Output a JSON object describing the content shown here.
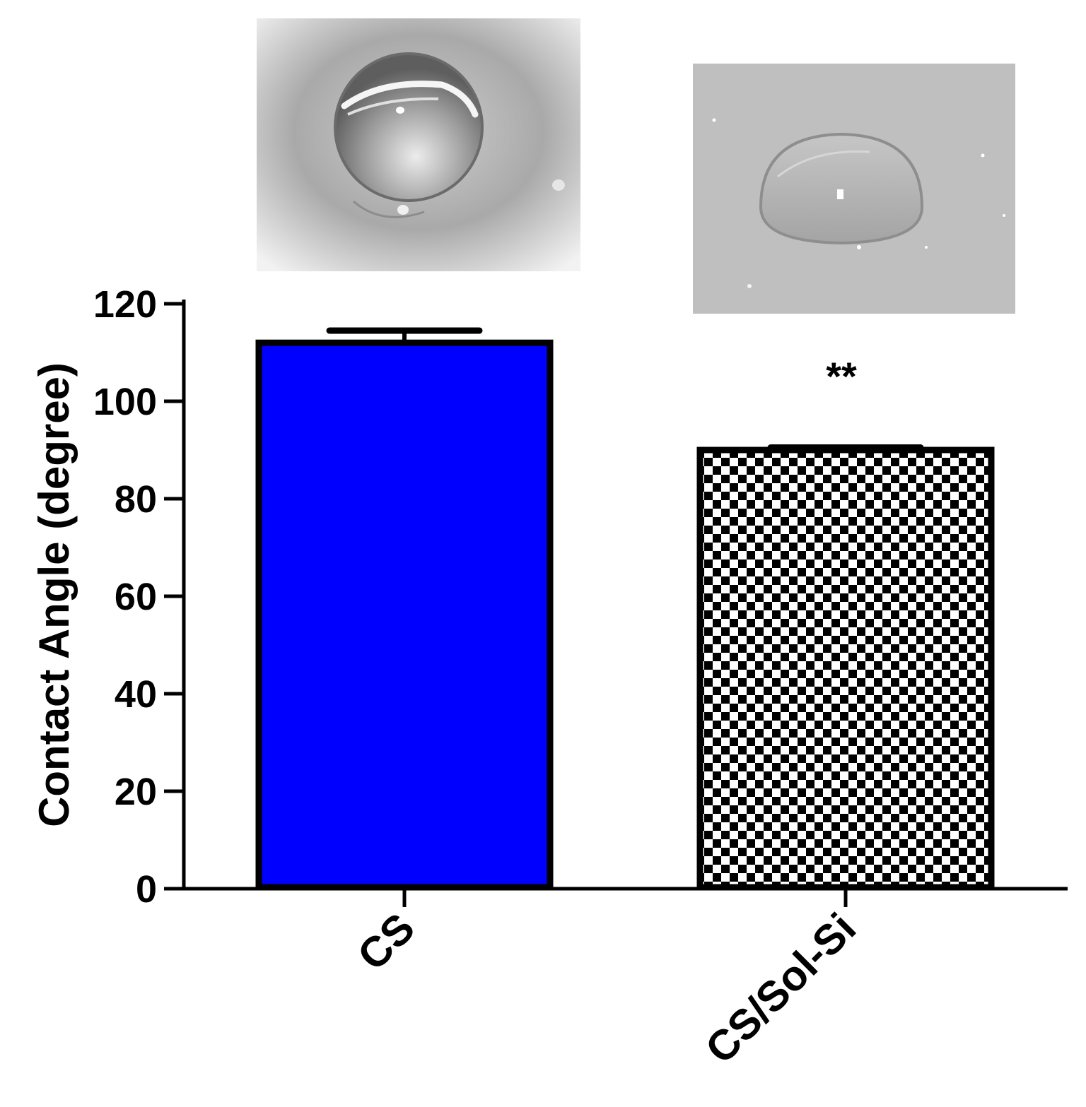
{
  "chart_data": {
    "type": "bar",
    "categories": [
      "CS",
      "CS/Sol-Si"
    ],
    "values": [
      112,
      90
    ],
    "errors": [
      2.5,
      0.5
    ],
    "title": "",
    "xlabel": "",
    "ylabel": "Contact Angle (degree)",
    "ylim": [
      0,
      120
    ],
    "yticks": [
      0,
      20,
      40,
      60,
      80,
      100,
      120
    ],
    "grid": false,
    "legend": "none",
    "annotations": [
      {
        "category": "CS/Sol-Si",
        "text": "**"
      }
    ],
    "colors": {
      "cs_fill": "#0000ff",
      "checker_dark": "#000000",
      "checker_light": "#ffffff",
      "bar_outline": "#000000"
    },
    "inset_images": [
      {
        "category": "CS",
        "icon": "water-droplet-photo-high-angle"
      },
      {
        "category": "CS/Sol-Si",
        "icon": "water-droplet-photo-low-angle"
      }
    ]
  }
}
